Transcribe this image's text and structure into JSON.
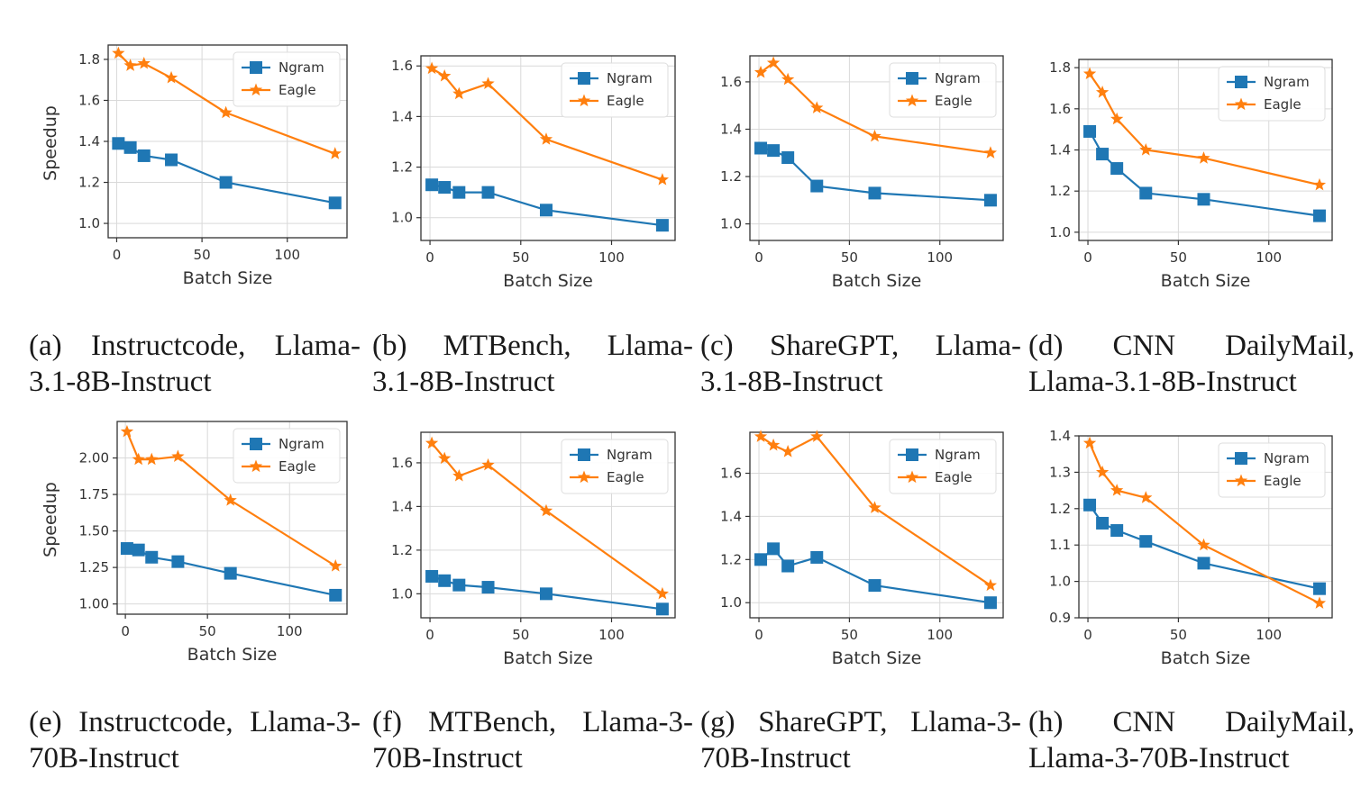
{
  "colors": {
    "ngram": "#1f77b4",
    "eagle": "#ff7f0e",
    "axis": "#333333",
    "grid": "#d9d9d9"
  },
  "chart_data": [
    {
      "type": "line",
      "id": "a",
      "caption_line1": "(a) Instructcode, Llama-",
      "caption_line2": "3.1-8B-Instruct",
      "xlabel": "Batch Size",
      "ylabel": "Speedup",
      "xlim": [
        -5,
        135
      ],
      "ylim": [
        0.93,
        1.87
      ],
      "xticks": [
        0,
        50,
        100
      ],
      "yticks": [
        "1.0",
        "1.2",
        "1.4",
        "1.6",
        "1.8"
      ],
      "x": [
        1,
        8,
        16,
        32,
        64,
        128
      ],
      "series": [
        {
          "name": "Ngram",
          "values": [
            1.39,
            1.37,
            1.33,
            1.31,
            1.2,
            1.1
          ]
        },
        {
          "name": "Eagle",
          "values": [
            1.83,
            1.77,
            1.78,
            1.71,
            1.54,
            1.34
          ]
        }
      ],
      "legend": "upper right"
    },
    {
      "type": "line",
      "id": "b",
      "caption_line1": "(b) MTBench, Llama-",
      "caption_line2": "3.1-8B-Instruct",
      "xlabel": "Batch Size",
      "ylabel": "",
      "xlim": [
        -5,
        135
      ],
      "ylim": [
        0.91,
        1.64
      ],
      "xticks": [
        0,
        50,
        100
      ],
      "yticks": [
        "1.0",
        "1.2",
        "1.4",
        "1.6"
      ],
      "x": [
        1,
        8,
        16,
        32,
        64,
        128
      ],
      "series": [
        {
          "name": "Ngram",
          "values": [
            1.13,
            1.12,
            1.1,
            1.1,
            1.03,
            0.97
          ]
        },
        {
          "name": "Eagle",
          "values": [
            1.59,
            1.56,
            1.49,
            1.53,
            1.31,
            1.15
          ]
        }
      ],
      "legend": "upper right"
    },
    {
      "type": "line",
      "id": "c",
      "caption_line1": "(c) ShareGPT, Llama-",
      "caption_line2": "3.1-8B-Instruct",
      "xlabel": "Batch Size",
      "ylabel": "",
      "xlim": [
        -5,
        135
      ],
      "ylim": [
        0.93,
        1.71
      ],
      "xticks": [
        0,
        50,
        100
      ],
      "yticks": [
        "1.0",
        "1.2",
        "1.4",
        "1.6"
      ],
      "x": [
        1,
        8,
        16,
        32,
        64,
        128
      ],
      "series": [
        {
          "name": "Ngram",
          "values": [
            1.32,
            1.31,
            1.28,
            1.16,
            1.13,
            1.1
          ]
        },
        {
          "name": "Eagle",
          "values": [
            1.64,
            1.68,
            1.61,
            1.49,
            1.37,
            1.3
          ]
        }
      ],
      "legend": "upper right"
    },
    {
      "type": "line",
      "id": "d",
      "caption_line1": "(d) CNN DailyMail,",
      "caption_line2": "Llama-3.1-8B-Instruct",
      "xlabel": "Batch Size",
      "ylabel": "",
      "xlim": [
        -5,
        135
      ],
      "ylim": [
        0.96,
        1.84
      ],
      "xticks": [
        0,
        50,
        100
      ],
      "yticks": [
        "1.0",
        "1.2",
        "1.4",
        "1.6",
        "1.8"
      ],
      "x": [
        1,
        8,
        16,
        32,
        64,
        128
      ],
      "series": [
        {
          "name": "Ngram",
          "values": [
            1.49,
            1.38,
            1.31,
            1.19,
            1.16,
            1.08
          ]
        },
        {
          "name": "Eagle",
          "values": [
            1.77,
            1.68,
            1.55,
            1.4,
            1.36,
            1.23
          ]
        }
      ],
      "legend": "upper right"
    },
    {
      "type": "line",
      "id": "e",
      "caption_line1": "(e) Instructcode, Llama-3-",
      "caption_line2": "70B-Instruct",
      "xlabel": "Batch Size",
      "ylabel": "Speedup",
      "xlim": [
        -5,
        135
      ],
      "ylim": [
        0.93,
        2.25
      ],
      "xticks": [
        0,
        50,
        100
      ],
      "yticks": [
        "1.00",
        "1.25",
        "1.50",
        "1.75",
        "2.00"
      ],
      "x": [
        1,
        8,
        16,
        32,
        64,
        128
      ],
      "series": [
        {
          "name": "Ngram",
          "values": [
            1.38,
            1.37,
            1.32,
            1.29,
            1.21,
            1.06
          ]
        },
        {
          "name": "Eagle",
          "values": [
            2.18,
            1.99,
            1.99,
            2.01,
            1.71,
            1.26
          ]
        }
      ],
      "legend": "upper right"
    },
    {
      "type": "line",
      "id": "f",
      "caption_line1": "(f) MTBench, Llama-3-",
      "caption_line2": "70B-Instruct",
      "xlabel": "Batch Size",
      "ylabel": "",
      "xlim": [
        -5,
        135
      ],
      "ylim": [
        0.89,
        1.74
      ],
      "xticks": [
        0,
        50,
        100
      ],
      "yticks": [
        "1.0",
        "1.2",
        "1.4",
        "1.6"
      ],
      "x": [
        1,
        8,
        16,
        32,
        64,
        128
      ],
      "series": [
        {
          "name": "Ngram",
          "values": [
            1.08,
            1.06,
            1.04,
            1.03,
            1.0,
            0.93
          ]
        },
        {
          "name": "Eagle",
          "values": [
            1.69,
            1.62,
            1.54,
            1.59,
            1.38,
            1.0
          ]
        }
      ],
      "legend": "upper right"
    },
    {
      "type": "line",
      "id": "g",
      "caption_line1": "(g) ShareGPT, Llama-3-",
      "caption_line2": "70B-Instruct",
      "xlabel": "Batch Size",
      "ylabel": "",
      "xlim": [
        -5,
        135
      ],
      "ylim": [
        0.93,
        1.79
      ],
      "xticks": [
        0,
        50,
        100
      ],
      "yticks": [
        "1.0",
        "1.2",
        "1.4",
        "1.6"
      ],
      "x": [
        1,
        8,
        16,
        32,
        64,
        128
      ],
      "series": [
        {
          "name": "Ngram",
          "values": [
            1.2,
            1.25,
            1.17,
            1.21,
            1.08,
            1.0
          ]
        },
        {
          "name": "Eagle",
          "values": [
            1.77,
            1.73,
            1.7,
            1.77,
            1.44,
            1.08
          ]
        }
      ],
      "legend": "upper right"
    },
    {
      "type": "line",
      "id": "h",
      "caption_line1": "(h) CNN DailyMail,",
      "caption_line2": "Llama-3-70B-Instruct",
      "xlabel": "Batch Size",
      "ylabel": "",
      "xlim": [
        -5,
        135
      ],
      "ylim": [
        0.9,
        1.4
      ],
      "xticks": [
        0,
        50,
        100
      ],
      "yticks": [
        "0.9",
        "1.0",
        "1.1",
        "1.2",
        "1.3",
        "1.4"
      ],
      "x": [
        1,
        8,
        16,
        32,
        64,
        128
      ],
      "series": [
        {
          "name": "Ngram",
          "values": [
            1.21,
            1.16,
            1.14,
            1.11,
            1.05,
            0.98
          ]
        },
        {
          "name": "Eagle",
          "values": [
            1.38,
            1.3,
            1.25,
            1.23,
            1.1,
            0.94
          ]
        }
      ],
      "legend": "upper right"
    }
  ]
}
